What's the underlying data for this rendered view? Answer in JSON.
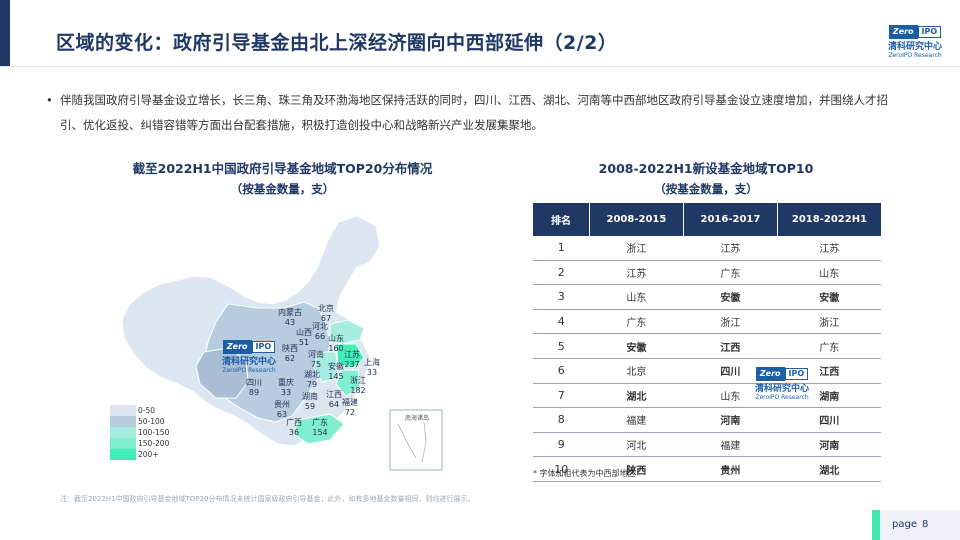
{
  "header": {
    "title": "区域的变化：政府引导基金由北上深经济圈向中西部延伸（2/2）",
    "logo": {
      "badge_left": "Zero",
      "badge_right": "IPO",
      "name_cn": "清科研究中心",
      "name_en": "ZeroIPO Research"
    }
  },
  "bullet": {
    "symbol": "•",
    "text": "伴随我国政府引导基金设立增长，长三角、珠三角及环渤海地区保持活跃的同时，四川、江西、湖北、河南等中西部地区政府引导基金设立速度增加，并围绕人才招引、优化返投、纠错容错等方面出台配套措施，积极打造创投中心和战略新兴产业发展集聚地。"
  },
  "map": {
    "title": "截至2022H1中国政府引导基金地域TOP20分布情况",
    "subtitle": "（按基金数量，支）",
    "colors": {
      "range_0_50": "#dce6f0",
      "range_50_100": "#b8ccdf",
      "range_100_150": "#a7ece0",
      "range_150_200": "#7fefd0",
      "range_200_plus": "#3ff0b6"
    },
    "legend": [
      "0-50",
      "50-100",
      "100-150",
      "150-200",
      "200+"
    ],
    "provinces": [
      {
        "name": "北京",
        "value": "67"
      },
      {
        "name": "内蒙古",
        "value": "43"
      },
      {
        "name": "河北",
        "value": "66"
      },
      {
        "name": "山西",
        "value": "51"
      },
      {
        "name": "山东",
        "value": "160"
      },
      {
        "name": "陕西",
        "value": "62"
      },
      {
        "name": "河南",
        "value": "75"
      },
      {
        "name": "江苏",
        "value": "237"
      },
      {
        "name": "安徽",
        "value": "145"
      },
      {
        "name": "上海",
        "value": "33"
      },
      {
        "name": "四川",
        "value": "89"
      },
      {
        "name": "重庆",
        "value": "33"
      },
      {
        "name": "湖北",
        "value": "79"
      },
      {
        "name": "浙江",
        "value": "182"
      },
      {
        "name": "湖南",
        "value": "59"
      },
      {
        "name": "江西",
        "value": "64"
      },
      {
        "name": "贵州",
        "value": "63"
      },
      {
        "name": "福建",
        "value": "72"
      },
      {
        "name": "广西",
        "value": "36"
      },
      {
        "name": "广东",
        "value": "154"
      }
    ],
    "inset_label": "南海诸岛"
  },
  "table": {
    "title": "2008-2022H1新设基金地域TOP10",
    "subtitle": "（按基金数量，支）",
    "headers": [
      "排名",
      "2008-2015",
      "2016-2017",
      "2018-2022H1"
    ],
    "rows": [
      {
        "rank": "1",
        "c1": "浙江",
        "c2": "江苏",
        "c3": "江苏"
      },
      {
        "rank": "2",
        "c1": "江苏",
        "c2": "广东",
        "c3": "山东"
      },
      {
        "rank": "3",
        "c1": "山东",
        "c2": "安徽",
        "c3": "安徽"
      },
      {
        "rank": "4",
        "c1": "广东",
        "c2": "浙江",
        "c3": "浙江"
      },
      {
        "rank": "5",
        "c1": "安徽",
        "c2": "江西",
        "c3": "广东"
      },
      {
        "rank": "6",
        "c1": "北京",
        "c2": "四川",
        "c3": "江西"
      },
      {
        "rank": "7",
        "c1": "湖北",
        "c2": "山东",
        "c3": "湖南"
      },
      {
        "rank": "8",
        "c1": "福建",
        "c2": "河南",
        "c3": "四川"
      },
      {
        "rank": "9",
        "c1": "河北",
        "c2": "福建",
        "c3": "河南"
      },
      {
        "rank": "10",
        "c1": "陕西",
        "c2": "贵州",
        "c3": "湖北"
      }
    ],
    "bold_cells": [
      "安徽",
      "江西",
      "四川",
      "湖北",
      "河南",
      "湖南",
      "陕西",
      "贵州"
    ]
  },
  "footnote_table": "* 字体加粗代表为中西部地区",
  "footnote_source": "注：截至2022H1中国政府引导基金地域TOP20分布情况未统计国家级政府引导基金；此外，如有多地基金数量相同，则均进行展示。",
  "page": {
    "label": "page",
    "number": "8"
  }
}
